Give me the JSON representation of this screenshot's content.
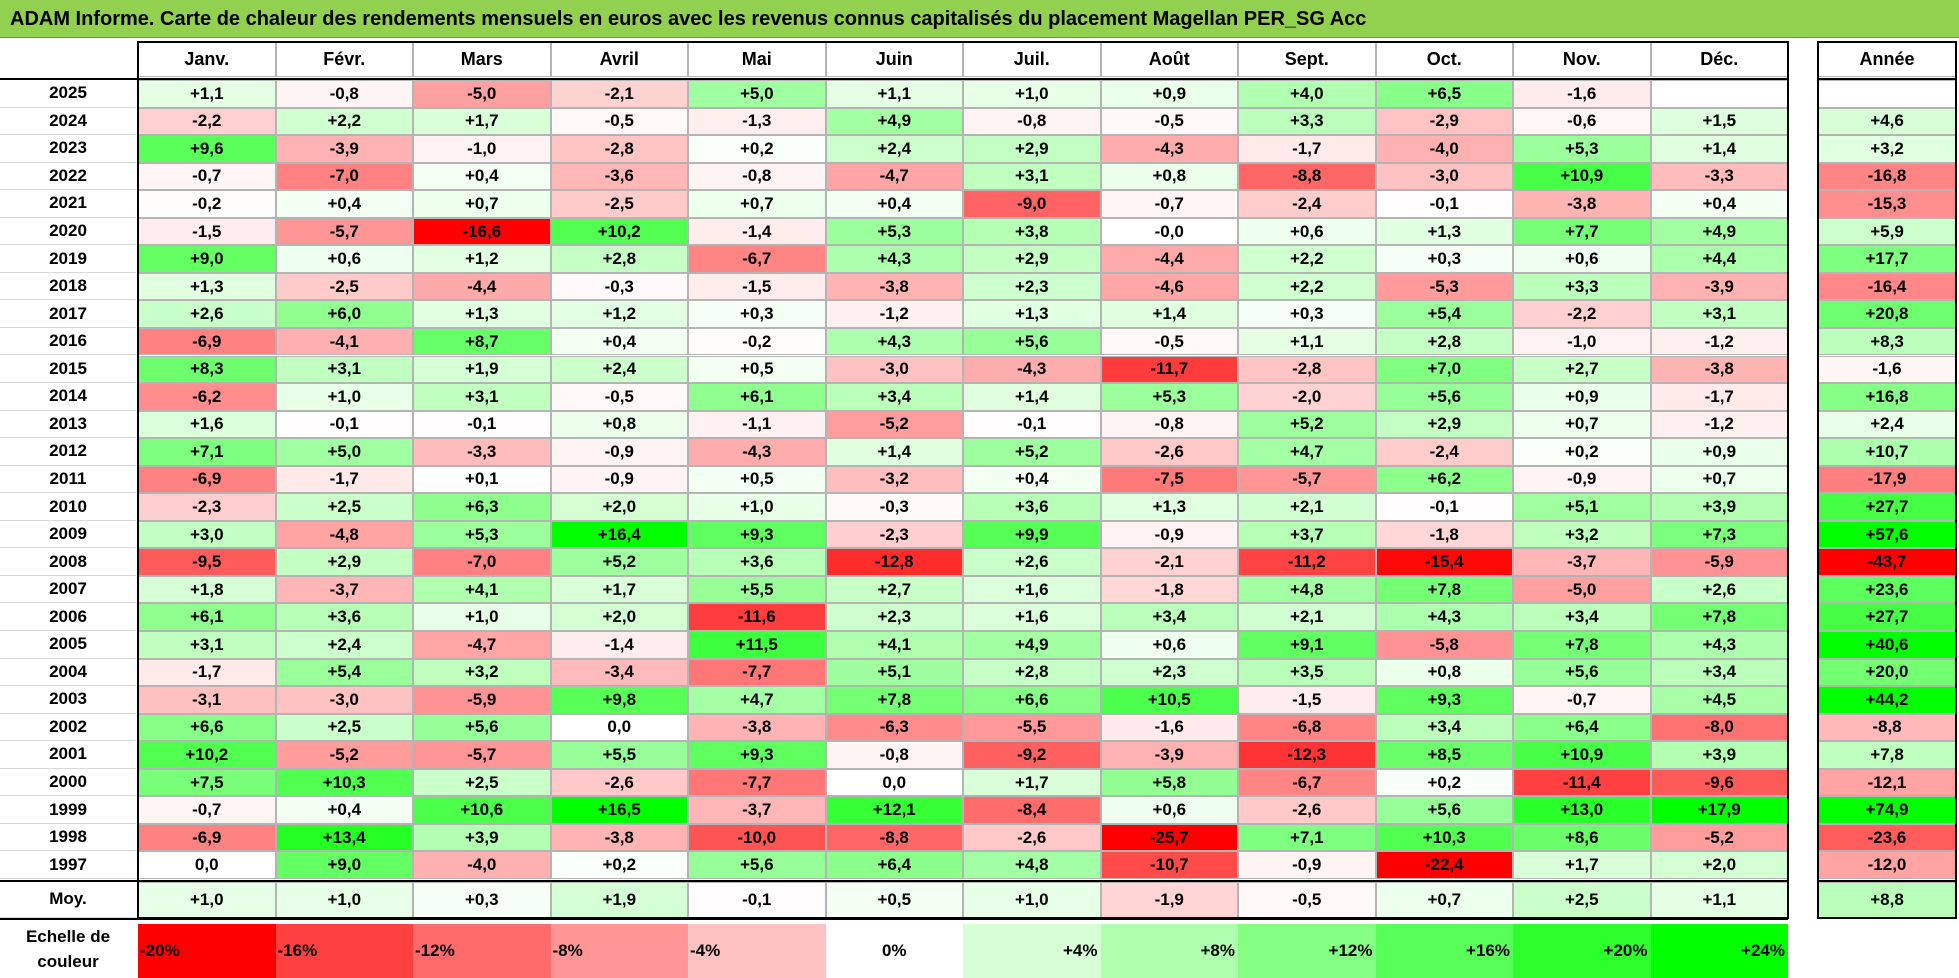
{
  "title": "ADAM Informe. Carte de chaleur des rendements mensuels en euros avec les revenus connus capitalisés du placement Magellan PER_SG Acc",
  "chart_data": {
    "type": "heatmap",
    "months": [
      "Janv.",
      "Févr.",
      "Mars",
      "Avril",
      "Mai",
      "Juin",
      "Juil.",
      "Août",
      "Sept.",
      "Oct.",
      "Nov.",
      "Déc."
    ],
    "year_header": "Année",
    "rows": [
      {
        "year": "2025",
        "values": [
          "+1,1",
          "-0,8",
          "-5,0",
          "-2,1",
          "+5,0",
          "+1,1",
          "+1,0",
          "+0,9",
          "+4,0",
          "+6,5",
          "-1,6",
          ""
        ],
        "annual": ""
      },
      {
        "year": "2024",
        "values": [
          "-2,2",
          "+2,2",
          "+1,7",
          "-0,5",
          "-1,3",
          "+4,9",
          "-0,8",
          "-0,5",
          "+3,3",
          "-2,9",
          "-0,6",
          "+1,5"
        ],
        "annual": "+4,6"
      },
      {
        "year": "2023",
        "values": [
          "+9,6",
          "-3,9",
          "-1,0",
          "-2,8",
          "+0,2",
          "+2,4",
          "+2,9",
          "-4,3",
          "-1,7",
          "-4,0",
          "+5,3",
          "+1,4"
        ],
        "annual": "+3,2"
      },
      {
        "year": "2022",
        "values": [
          "-0,7",
          "-7,0",
          "+0,4",
          "-3,6",
          "-0,8",
          "-4,7",
          "+3,1",
          "+0,8",
          "-8,8",
          "-3,0",
          "+10,9",
          "-3,3"
        ],
        "annual": "-16,8"
      },
      {
        "year": "2021",
        "values": [
          "-0,2",
          "+0,4",
          "+0,7",
          "-2,5",
          "+0,7",
          "+0,4",
          "-9,0",
          "-0,7",
          "-2,4",
          "-0,1",
          "-3,8",
          "+0,4"
        ],
        "annual": "-15,3"
      },
      {
        "year": "2020",
        "values": [
          "-1,5",
          "-5,7",
          "-16,6",
          "+10,2",
          "-1,4",
          "+5,3",
          "+3,8",
          "-0,0",
          "+0,6",
          "+1,3",
          "+7,7",
          "+4,9"
        ],
        "annual": "+5,9"
      },
      {
        "year": "2019",
        "values": [
          "+9,0",
          "+0,6",
          "+1,2",
          "+2,8",
          "-6,7",
          "+4,3",
          "+2,9",
          "-4,4",
          "+2,2",
          "+0,3",
          "+0,6",
          "+4,4"
        ],
        "annual": "+17,7"
      },
      {
        "year": "2018",
        "values": [
          "+1,3",
          "-2,5",
          "-4,4",
          "-0,3",
          "-1,5",
          "-3,8",
          "+2,3",
          "-4,6",
          "+2,2",
          "-5,3",
          "+3,3",
          "-3,9"
        ],
        "annual": "-16,4"
      },
      {
        "year": "2017",
        "values": [
          "+2,6",
          "+6,0",
          "+1,3",
          "+1,2",
          "+0,3",
          "-1,2",
          "+1,3",
          "+1,4",
          "+0,3",
          "+5,4",
          "-2,2",
          "+3,1"
        ],
        "annual": "+20,8"
      },
      {
        "year": "2016",
        "values": [
          "-6,9",
          "-4,1",
          "+8,7",
          "+0,4",
          "-0,2",
          "+4,3",
          "+5,6",
          "-0,5",
          "+1,1",
          "+2,8",
          "-1,0",
          "-1,2"
        ],
        "annual": "+8,3"
      },
      {
        "year": "2015",
        "values": [
          "+8,3",
          "+3,1",
          "+1,9",
          "+2,4",
          "+0,5",
          "-3,0",
          "-4,3",
          "-11,7",
          "-2,8",
          "+7,0",
          "+2,7",
          "-3,8"
        ],
        "annual": "-1,6"
      },
      {
        "year": "2014",
        "values": [
          "-6,2",
          "+1,0",
          "+3,1",
          "-0,5",
          "+6,1",
          "+3,4",
          "+1,4",
          "+5,3",
          "-2,0",
          "+5,6",
          "+0,9",
          "-1,7"
        ],
        "annual": "+16,8"
      },
      {
        "year": "2013",
        "values": [
          "+1,6",
          "-0,1",
          "-0,1",
          "+0,8",
          "-1,1",
          "-5,2",
          "-0,1",
          "-0,8",
          "+5,2",
          "+2,9",
          "+0,7",
          "-1,2"
        ],
        "annual": "+2,4"
      },
      {
        "year": "2012",
        "values": [
          "+7,1",
          "+5,0",
          "-3,3",
          "-0,9",
          "-4,3",
          "+1,4",
          "+5,2",
          "-2,6",
          "+4,7",
          "-2,4",
          "+0,2",
          "+0,9"
        ],
        "annual": "+10,7"
      },
      {
        "year": "2011",
        "values": [
          "-6,9",
          "-1,7",
          "+0,1",
          "-0,9",
          "+0,5",
          "-3,2",
          "+0,4",
          "-7,5",
          "-5,7",
          "+6,2",
          "-0,9",
          "+0,7"
        ],
        "annual": "-17,9"
      },
      {
        "year": "2010",
        "values": [
          "-2,3",
          "+2,5",
          "+6,3",
          "+2,0",
          "+1,0",
          "-0,3",
          "+3,6",
          "+1,3",
          "+2,1",
          "-0,1",
          "+5,1",
          "+3,9"
        ],
        "annual": "+27,7"
      },
      {
        "year": "2009",
        "values": [
          "+3,0",
          "-4,8",
          "+5,3",
          "+16,4",
          "+9,3",
          "-2,3",
          "+9,9",
          "-0,9",
          "+3,7",
          "-1,8",
          "+3,2",
          "+7,3"
        ],
        "annual": "+57,6"
      },
      {
        "year": "2008",
        "values": [
          "-9,5",
          "+2,9",
          "-7,0",
          "+5,2",
          "+3,6",
          "-12,8",
          "+2,6",
          "-2,1",
          "-11,2",
          "-15,4",
          "-3,7",
          "-5,9"
        ],
        "annual": "-43,7"
      },
      {
        "year": "2007",
        "values": [
          "+1,8",
          "-3,7",
          "+4,1",
          "+1,7",
          "+5,5",
          "+2,7",
          "+1,6",
          "-1,8",
          "+4,8",
          "+7,8",
          "-5,0",
          "+2,6"
        ],
        "annual": "+23,6"
      },
      {
        "year": "2006",
        "values": [
          "+6,1",
          "+3,6",
          "+1,0",
          "+2,0",
          "-11,6",
          "+2,3",
          "+1,6",
          "+3,4",
          "+2,1",
          "+4,3",
          "+3,4",
          "+7,8"
        ],
        "annual": "+27,7"
      },
      {
        "year": "2005",
        "values": [
          "+3,1",
          "+2,4",
          "-4,7",
          "-1,4",
          "+11,5",
          "+4,1",
          "+4,9",
          "+0,6",
          "+9,1",
          "-5,8",
          "+7,8",
          "+4,3"
        ],
        "annual": "+40,6"
      },
      {
        "year": "2004",
        "values": [
          "-1,7",
          "+5,4",
          "+3,2",
          "-3,4",
          "-7,7",
          "+5,1",
          "+2,8",
          "+2,3",
          "+3,5",
          "+0,8",
          "+5,6",
          "+3,4"
        ],
        "annual": "+20,0"
      },
      {
        "year": "2003",
        "values": [
          "-3,1",
          "-3,0",
          "-5,9",
          "+9,8",
          "+4,7",
          "+7,8",
          "+6,6",
          "+10,5",
          "-1,5",
          "+9,3",
          "-0,7",
          "+4,5"
        ],
        "annual": "+44,2"
      },
      {
        "year": "2002",
        "values": [
          "+6,6",
          "+2,5",
          "+5,6",
          "0,0",
          "-3,8",
          "-6,3",
          "-5,5",
          "-1,6",
          "-6,8",
          "+3,4",
          "+6,4",
          "-8,0"
        ],
        "annual": "-8,8"
      },
      {
        "year": "2001",
        "values": [
          "+10,2",
          "-5,2",
          "-5,7",
          "+5,5",
          "+9,3",
          "-0,8",
          "-9,2",
          "-3,9",
          "-12,3",
          "+8,5",
          "+10,9",
          "+3,9"
        ],
        "annual": "+7,8"
      },
      {
        "year": "2000",
        "values": [
          "+7,5",
          "+10,3",
          "+2,5",
          "-2,6",
          "-7,7",
          "0,0",
          "+1,7",
          "+5,8",
          "-6,7",
          "+0,2",
          "-11,4",
          "-9,6"
        ],
        "annual": "-12,1"
      },
      {
        "year": "1999",
        "values": [
          "-0,7",
          "+0,4",
          "+10,6",
          "+16,5",
          "-3,7",
          "+12,1",
          "-8,4",
          "+0,6",
          "-2,6",
          "+5,6",
          "+13,0",
          "+17,9"
        ],
        "annual": "+74,9"
      },
      {
        "year": "1998",
        "values": [
          "-6,9",
          "+13,4",
          "+3,9",
          "-3,8",
          "-10,0",
          "-8,8",
          "-2,6",
          "-25,7",
          "+7,1",
          "+10,3",
          "+8,6",
          "-5,2"
        ],
        "annual": "-23,6"
      },
      {
        "year": "1997",
        "values": [
          "0,0",
          "+9,0",
          "-4,0",
          "+0,2",
          "+5,6",
          "+6,4",
          "+4,8",
          "-10,7",
          "-0,9",
          "-22,4",
          "+1,7",
          "+2,0"
        ],
        "annual": "-12,0"
      }
    ],
    "average": {
      "label": "Moy.",
      "values": [
        "+1,0",
        "+1,0",
        "+0,3",
        "+1,9",
        "-0,1",
        "+0,5",
        "+1,0",
        "-1,9",
        "-0,5",
        "+0,7",
        "+2,5",
        "+1,1"
      ],
      "annual": "+8,8"
    },
    "color_scale": {
      "label": "Echelle de couleur",
      "stops": [
        {
          "label": "-20%",
          "value": -20
        },
        {
          "label": "-16%",
          "value": -16
        },
        {
          "label": "-12%",
          "value": -12
        },
        {
          "label": "-8%",
          "value": -8
        },
        {
          "label": "-4%",
          "value": -4
        },
        {
          "label": "0%",
          "value": 0
        },
        {
          "label": "+4%",
          "value": 4
        },
        {
          "label": "+8%",
          "value": 8
        },
        {
          "label": "+12%",
          "value": 12
        },
        {
          "label": "+16%",
          "value": 16
        },
        {
          "label": "+20%",
          "value": 20
        },
        {
          "label": "+24%",
          "value": 24
        }
      ],
      "negative_color": "#ff0000",
      "positive_color": "#00ff00",
      "neutral_color": "#ffffff"
    }
  }
}
